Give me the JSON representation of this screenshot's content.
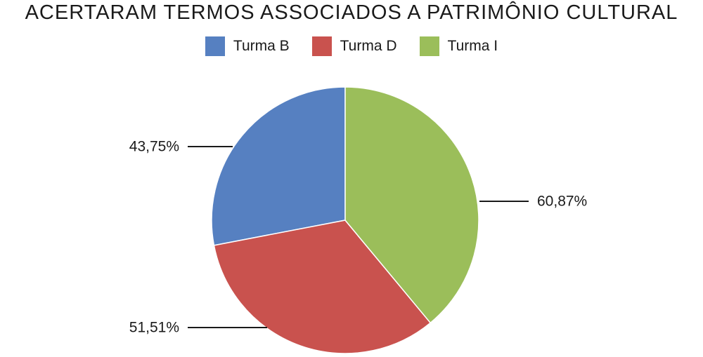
{
  "chart_data": {
    "type": "pie",
    "title": "ACERTARAM TERMOS ASSOCIADOS A PATRIMÔNIO CULTURAL",
    "categories": [
      "Turma B",
      "Turma D",
      "Turma I"
    ],
    "values": [
      43.75,
      51.51,
      60.87
    ],
    "data_labels": [
      "43,75%",
      "51,51%",
      "60,87%"
    ],
    "colors": [
      "#5680C1",
      "#C9524E",
      "#9BBE5A"
    ],
    "legend_position": "top"
  }
}
